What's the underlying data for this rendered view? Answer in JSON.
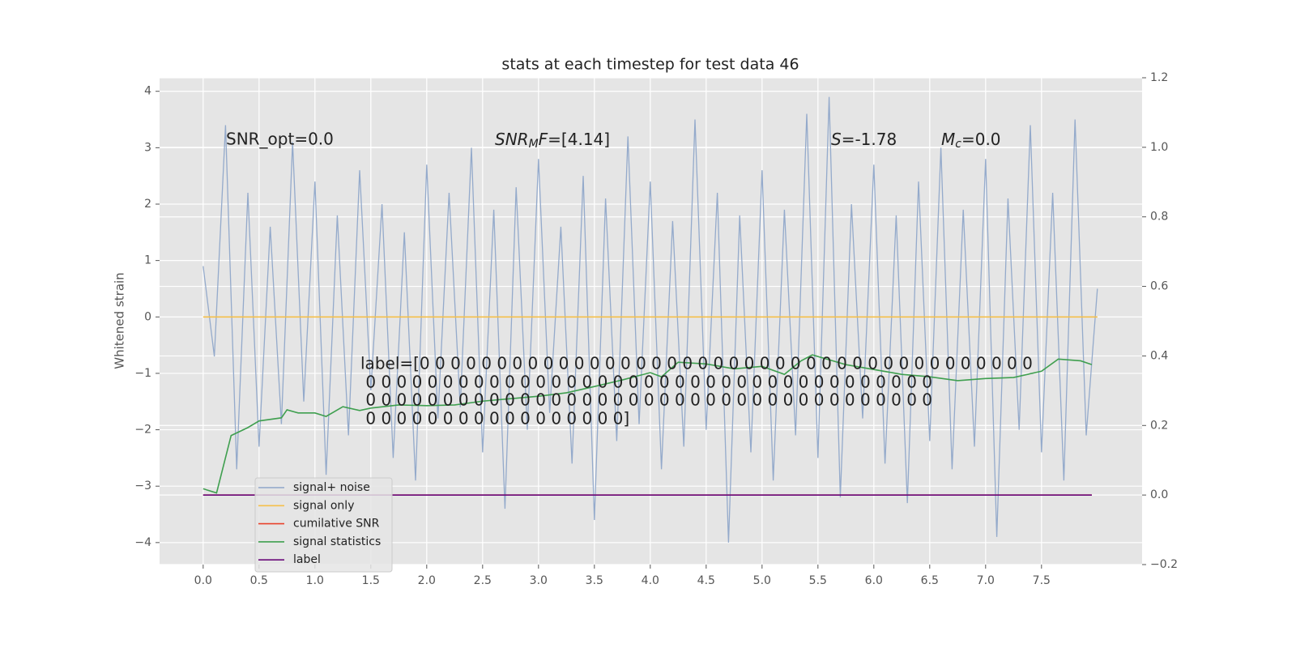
{
  "chart_data": {
    "type": "line",
    "title": "stats at each timestep for test data 46",
    "ylabel": "Whitened strain",
    "xlim": [
      -0.39,
      8.4
    ],
    "ylim": [
      -4.39,
      4.24
    ],
    "y2lim": [
      -0.2,
      1.2
    ],
    "xticks": [
      {
        "value": 0,
        "label": "0.0"
      },
      {
        "value": 0.5,
        "label": "0.5"
      },
      {
        "value": 1,
        "label": "1.0"
      },
      {
        "value": 1.5,
        "label": "1.5"
      },
      {
        "value": 2,
        "label": "2.0"
      },
      {
        "value": 2.5,
        "label": "2.5"
      },
      {
        "value": 3,
        "label": "3.0"
      },
      {
        "value": 3.5,
        "label": "3.5"
      },
      {
        "value": 4,
        "label": "4.0"
      },
      {
        "value": 4.5,
        "label": "4.5"
      },
      {
        "value": 5,
        "label": "5.0"
      },
      {
        "value": 5.5,
        "label": "5.5"
      },
      {
        "value": 6,
        "label": "6.0"
      },
      {
        "value": 6.5,
        "label": "6.5"
      },
      {
        "value": 7,
        "label": "7.0"
      },
      {
        "value": 7.5,
        "label": "7.5"
      }
    ],
    "yticks": [
      {
        "value": -4,
        "label": "−4"
      },
      {
        "value": -3,
        "label": "−3"
      },
      {
        "value": -2,
        "label": "−2"
      },
      {
        "value": -1,
        "label": "−1"
      },
      0,
      1,
      2,
      3,
      4
    ],
    "y2ticks": [
      {
        "value": -0.2,
        "label": "−0.2"
      },
      {
        "value": 0,
        "label": "0.0"
      },
      {
        "value": 0.2,
        "label": "0.2"
      },
      {
        "value": 0.4,
        "label": "0.4"
      },
      {
        "value": 0.6,
        "label": "0.6"
      },
      {
        "value": 0.8,
        "label": "0.8"
      },
      {
        "value": 1.0,
        "label": "1.0"
      },
      {
        "value": 1.2,
        "label": "1.2"
      }
    ],
    "grid": true,
    "legend": "lower left",
    "series": [
      {
        "name": "signal+ noise",
        "color": "#8fa6c9",
        "axis": "y",
        "x": [
          0,
          0.1,
          0.2,
          0.3,
          0.4,
          0.5,
          0.6,
          0.7,
          0.8,
          0.9,
          1,
          1.1,
          1.2,
          1.3,
          1.4,
          1.5,
          1.6,
          1.7,
          1.8,
          1.9,
          2,
          2.1,
          2.2,
          2.3,
          2.4,
          2.5,
          2.6,
          2.7,
          2.8,
          2.9,
          3,
          3.1,
          3.2,
          3.3,
          3.4,
          3.5,
          3.6,
          3.7,
          3.8,
          3.9,
          4,
          4.1,
          4.2,
          4.3,
          4.4,
          4.5,
          4.6,
          4.7,
          4.8,
          4.9,
          5,
          5.1,
          5.2,
          5.3,
          5.4,
          5.5,
          5.6,
          5.7,
          5.8,
          5.9,
          6,
          6.1,
          6.2,
          6.3,
          6.4,
          6.5,
          6.6,
          6.7,
          6.8,
          6.9,
          7,
          7.1,
          7.2,
          7.3,
          7.4,
          7.5,
          7.6,
          7.7,
          7.8,
          7.9,
          8
        ],
        "values": [
          0.9,
          -0.7,
          3.4,
          -2.7,
          2.2,
          -2.3,
          1.6,
          -1.9,
          3.1,
          -1.5,
          2.4,
          -2.8,
          1.8,
          -2.1,
          2.6,
          -1.3,
          2.0,
          -2.5,
          1.5,
          -2.9,
          2.7,
          -1.8,
          2.2,
          -1.6,
          3.0,
          -2.4,
          1.9,
          -3.4,
          2.3,
          -2.0,
          2.8,
          -1.7,
          1.6,
          -2.6,
          2.5,
          -3.6,
          2.1,
          -2.2,
          3.2,
          -1.9,
          2.4,
          -2.7,
          1.7,
          -2.3,
          3.5,
          -2.0,
          2.2,
          -4.0,
          1.8,
          -2.4,
          2.6,
          -2.9,
          1.9,
          -2.1,
          3.6,
          -2.5,
          3.9,
          -3.2,
          2.0,
          -1.8,
          2.7,
          -2.6,
          1.8,
          -3.3,
          2.4,
          -2.2,
          3.0,
          -2.7,
          1.9,
          -2.3,
          2.8,
          -3.9,
          2.1,
          -2.0,
          3.4,
          -2.4,
          2.2,
          -2.9,
          3.5,
          -2.1,
          0.5
        ]
      },
      {
        "name": "signal only",
        "color": "#f5c04a",
        "axis": "y",
        "x": [
          0,
          8
        ],
        "values": [
          0,
          0
        ]
      },
      {
        "name": "cumilative SNR",
        "color": "#e8412a",
        "axis": "y2",
        "x": [
          0,
          7.95
        ],
        "values": [
          0,
          0
        ]
      },
      {
        "name": "signal statistics",
        "color": "#3f9f4f",
        "axis": "y2",
        "x": [
          0,
          0.12,
          0.25,
          0.4,
          0.5,
          0.7,
          0.75,
          0.85,
          1.0,
          1.1,
          1.25,
          1.4,
          1.5,
          1.75,
          2.0,
          2.25,
          2.5,
          2.75,
          3.0,
          3.25,
          3.5,
          3.75,
          4.0,
          4.1,
          4.25,
          4.5,
          4.75,
          5.0,
          5.2,
          5.35,
          5.45,
          5.75,
          6.0,
          6.25,
          6.5,
          6.75,
          7.0,
          7.25,
          7.5,
          7.65,
          7.85,
          7.95
        ],
        "values": [
          0.018,
          0.006,
          0.171,
          0.194,
          0.213,
          0.222,
          0.245,
          0.236,
          0.236,
          0.226,
          0.254,
          0.243,
          0.25,
          0.259,
          0.257,
          0.259,
          0.27,
          0.277,
          0.284,
          0.294,
          0.312,
          0.331,
          0.352,
          0.34,
          0.382,
          0.377,
          0.363,
          0.37,
          0.347,
          0.386,
          0.403,
          0.375,
          0.361,
          0.347,
          0.34,
          0.329,
          0.335,
          0.338,
          0.356,
          0.391,
          0.386,
          0.375
        ]
      },
      {
        "name": "label",
        "color": "#6a0a7a",
        "axis": "y2",
        "x": [
          0,
          7.95
        ],
        "values": [
          0,
          0
        ]
      }
    ],
    "annotations": [
      {
        "text": "SNR_opt=0.0"
      },
      {
        "italic": "SNR",
        "sub": "M",
        "italic2": "F",
        "text": "=[4.14]"
      },
      {
        "italic": "S",
        "text": "=-1.78"
      },
      {
        "italic": "M",
        "sub": "c",
        "text": "=0.0"
      }
    ],
    "label_text": [
      "label=[0 0 0 0 0 0 0 0 0 0 0 0 0 0 0 0 0 0 0 0 0 0 0 0 0 0 0 0 0 0 0 0 0 0 0 0 0 0 0 0",
      " 0 0 0 0 0 0 0 0 0 0 0 0 0 0 0 0 0 0 0 0 0 0 0 0 0 0 0 0 0 0 0 0 0 0 0 0 0",
      " 0 0 0 0 0 0 0 0 0 0 0 0 0 0 0 0 0 0 0 0 0 0 0 0 0 0 0 0 0 0 0 0 0 0 0 0 0",
      " 0 0 0 0 0 0 0 0 0 0 0 0 0 0 0 0 0]"
    ]
  }
}
